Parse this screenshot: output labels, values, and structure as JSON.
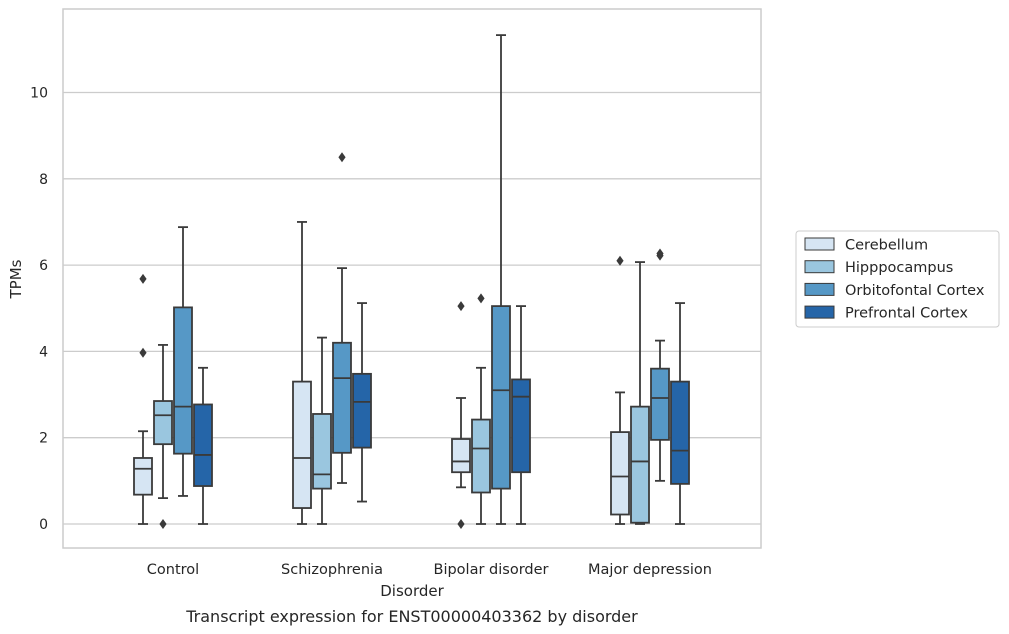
{
  "chart_data": {
    "type": "box",
    "title": "",
    "caption": "Transcript expression for ENST00000403362 by disorder",
    "xlabel": "Disorder",
    "ylabel": "TPMs",
    "ylim": [
      -0.55,
      12.0
    ],
    "yticks": [
      0,
      2,
      4,
      6,
      8,
      10
    ],
    "grid": "horizontal",
    "legend_position": "right",
    "categories": [
      "Control",
      "Schizophrenia",
      "Bipolar disorder",
      "Major depression"
    ],
    "series": [
      {
        "name": "Cerebellum",
        "color": "#d6e5f3",
        "boxes": [
          {
            "whisker_low": 0.0,
            "q1": 0.68,
            "median": 1.28,
            "q3": 1.53,
            "whisker_high": 2.15,
            "outliers": [
              3.97,
              5.68
            ]
          },
          {
            "whisker_low": 0.0,
            "q1": 0.37,
            "median": 1.53,
            "q3": 3.3,
            "whisker_high": 7.0,
            "outliers": []
          },
          {
            "whisker_low": 0.85,
            "q1": 1.2,
            "median": 1.45,
            "q3": 1.97,
            "whisker_high": 2.92,
            "outliers": [
              0.0,
              5.05
            ]
          },
          {
            "whisker_low": 0.0,
            "q1": 0.22,
            "median": 1.1,
            "q3": 2.13,
            "whisker_high": 3.05,
            "outliers": [
              6.1
            ]
          }
        ]
      },
      {
        "name": "Hipppocampus",
        "color": "#9ac6df",
        "boxes": [
          {
            "whisker_low": 0.6,
            "q1": 1.85,
            "median": 2.52,
            "q3": 2.85,
            "whisker_high": 4.15,
            "outliers": [
              0.0
            ]
          },
          {
            "whisker_low": 0.0,
            "q1": 0.82,
            "median": 1.15,
            "q3": 2.55,
            "whisker_high": 4.32,
            "outliers": []
          },
          {
            "whisker_low": 0.0,
            "q1": 0.73,
            "median": 1.75,
            "q3": 2.42,
            "whisker_high": 3.62,
            "outliers": [
              5.23
            ]
          },
          {
            "whisker_low": 0.0,
            "q1": 0.03,
            "median": 1.45,
            "q3": 2.72,
            "whisker_high": 6.07,
            "outliers": []
          }
        ]
      },
      {
        "name": "Orbitofontal Cortex",
        "color": "#5698c6",
        "boxes": [
          {
            "whisker_low": 0.65,
            "q1": 1.63,
            "median": 2.72,
            "q3": 5.02,
            "whisker_high": 6.88,
            "outliers": []
          },
          {
            "whisker_low": 0.95,
            "q1": 1.65,
            "median": 3.38,
            "q3": 4.2,
            "whisker_high": 5.93,
            "outliers": [
              8.5
            ]
          },
          {
            "whisker_low": 0.0,
            "q1": 0.82,
            "median": 3.1,
            "q3": 5.05,
            "whisker_high": 11.33,
            "outliers": []
          },
          {
            "whisker_low": 1.0,
            "q1": 1.95,
            "median": 2.92,
            "q3": 3.6,
            "whisker_high": 4.25,
            "outliers": [
              6.22,
              6.27
            ]
          }
        ]
      },
      {
        "name": "Prefrontal Cortex",
        "color": "#2565a8",
        "boxes": [
          {
            "whisker_low": 0.0,
            "q1": 0.88,
            "median": 1.6,
            "q3": 2.77,
            "whisker_high": 3.62,
            "outliers": []
          },
          {
            "whisker_low": 0.52,
            "q1": 1.77,
            "median": 2.83,
            "q3": 3.48,
            "whisker_high": 5.12,
            "outliers": []
          },
          {
            "whisker_low": 0.0,
            "q1": 1.2,
            "median": 2.95,
            "q3": 3.35,
            "whisker_high": 5.05,
            "outliers": []
          },
          {
            "whisker_low": 0.0,
            "q1": 0.93,
            "median": 1.7,
            "q3": 3.3,
            "whisker_high": 5.12,
            "outliers": []
          }
        ]
      }
    ]
  }
}
